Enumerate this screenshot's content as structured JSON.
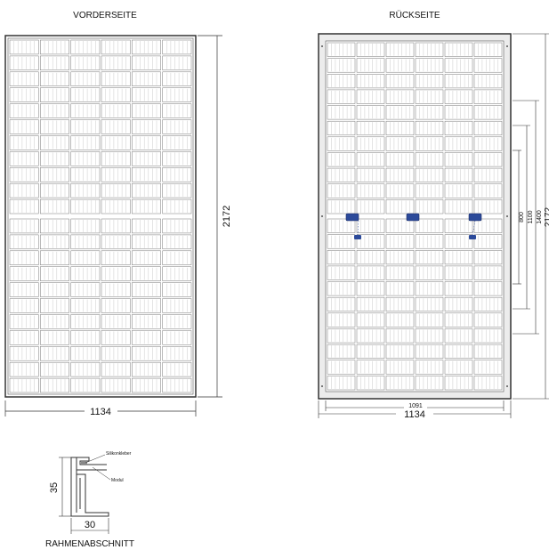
{
  "front": {
    "title": "VORDERSEITE",
    "width_label": "1134",
    "height_label": "2172"
  },
  "back": {
    "title": "RÜCKSEITE",
    "width_label": "1134",
    "inner_width_label": "1091",
    "height_label": "2172",
    "dim_800": "800",
    "dim_1100": "1100",
    "dim_1400": "1400"
  },
  "frame": {
    "title": "RAHMENABSCHNITT",
    "height_label": "35",
    "width_label": "30",
    "silicone_label": "Silikonkleber",
    "module_label": "Modul"
  },
  "colors": {
    "line": "#333333",
    "cell_line": "#777777",
    "connector": "#2c4a9a"
  }
}
